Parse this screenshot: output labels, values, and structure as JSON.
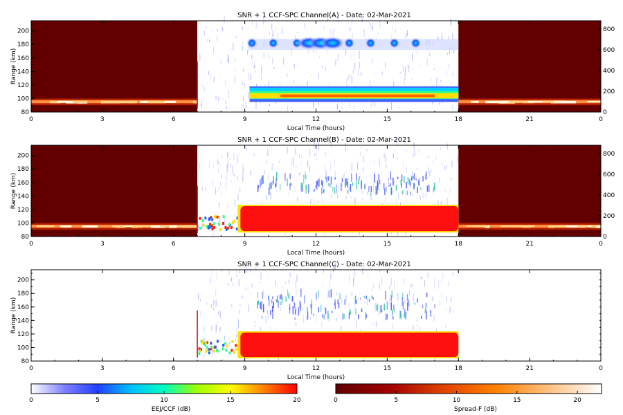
{
  "chart_data": [
    {
      "type": "heatmap",
      "title": "SNR + 1 CCF-SPC Channel(A) - Date: 02-Mar-2021",
      "xlabel": "Local Time (hours)",
      "ylabel": "Range (km)",
      "xlim": [
        0,
        24
      ],
      "ylim": [
        80,
        215
      ],
      "x_ticks": [
        "0",
        "3",
        "6",
        "9",
        "12",
        "15",
        "18",
        "21",
        "0"
      ],
      "y_ticks": [
        80,
        100,
        120,
        140,
        160,
        180,
        200
      ],
      "right_axis_ticks": [
        0,
        200,
        400,
        600,
        800
      ],
      "spreadf_periods_hours": [
        [
          0,
          7
        ],
        [
          18,
          24
        ]
      ],
      "eej_period_hours": [
        7,
        18
      ],
      "eej_layer_km": [
        95,
        118
      ],
      "eej_core_km": [
        100,
        108
      ],
      "upper_echo_km": [
        172,
        188
      ],
      "upper_echo_hours": [
        9.2,
        18
      ]
    },
    {
      "type": "heatmap",
      "title": "SNR + 1 CCF-SPC Channel(B) - Date: 02-Mar-2021",
      "xlabel": "Local Time (hours)",
      "ylabel": "Range (km)",
      "xlim": [
        0,
        24
      ],
      "ylim": [
        80,
        215
      ],
      "x_ticks": [
        "0",
        "3",
        "6",
        "9",
        "12",
        "15",
        "18",
        "21",
        "0"
      ],
      "y_ticks": [
        80,
        100,
        120,
        140,
        160,
        180,
        200
      ],
      "right_axis_ticks": [
        0,
        200,
        400,
        600,
        800
      ],
      "spreadf_periods_hours": [
        [
          0,
          7
        ],
        [
          18,
          24
        ]
      ],
      "eej_period_hours": [
        7,
        18
      ],
      "eej_layer_km": [
        88,
        125
      ],
      "upper_echo_km": [
        140,
        165
      ],
      "upper_echo_hours": [
        9.5,
        17
      ]
    },
    {
      "type": "heatmap",
      "title": "SNR + 1 CCF-SPC Channel(C) - Date: 02-Mar-2021",
      "xlabel": "Local Time (hours)",
      "ylabel": "Range (km)",
      "xlim": [
        0,
        24
      ],
      "ylim": [
        80,
        215
      ],
      "x_ticks": [
        "0",
        "3",
        "6",
        "9",
        "12",
        "15",
        "18",
        "21",
        "0"
      ],
      "y_ticks": [
        80,
        100,
        120,
        140,
        160,
        180,
        200
      ],
      "eej_period_hours": [
        7,
        18
      ],
      "eej_layer_km": [
        86,
        122
      ],
      "upper_echo_km": [
        140,
        175
      ],
      "upper_echo_hours": [
        9.5,
        17
      ]
    }
  ],
  "colorbars": [
    {
      "label": "EEJ/CCF (dB)",
      "ticks": [
        0,
        5,
        10,
        15,
        20
      ],
      "range": [
        0,
        20
      ],
      "colors": [
        "#ffffff",
        "#8080ff",
        "#2040ff",
        "#00c0ff",
        "#00ffc0",
        "#a0ff00",
        "#ffff00",
        "#ff8000",
        "#ff0000"
      ]
    },
    {
      "label": "Spread-F (dB)",
      "ticks": [
        0,
        5,
        10,
        15,
        20
      ],
      "range": [
        0,
        22
      ],
      "colors": [
        "#600000",
        "#a00000",
        "#e04000",
        "#ff8000",
        "#ffc080",
        "#ffffff"
      ]
    }
  ]
}
